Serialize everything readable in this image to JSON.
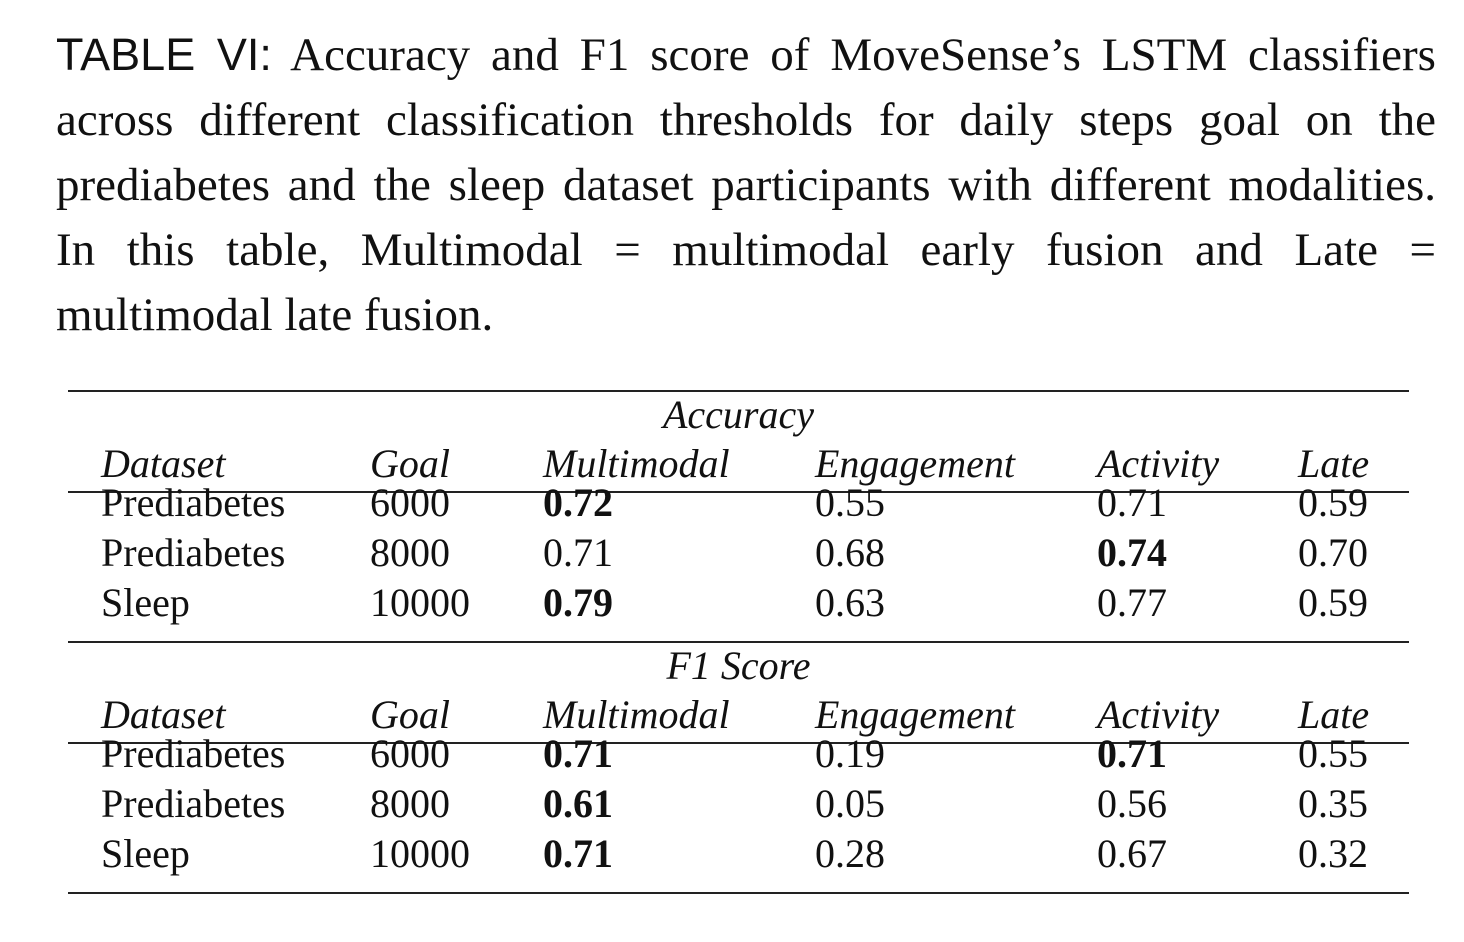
{
  "caption": {
    "label": "TABLE VI:",
    "text": "Accuracy and F1 score of MoveSense’s LSTM classifiers across different classification thresholds for daily steps goal on the prediabetes and the sleep dataset participants with different modalities. In this table, Multimodal = multimodal early fusion and Late = multimodal late fusion."
  },
  "table": {
    "columns": [
      "Dataset",
      "Goal",
      "Multimodal",
      "Engagement",
      "Activity",
      "Late"
    ],
    "sections": [
      {
        "title": "Accuracy",
        "rows": [
          {
            "cells": [
              "Prediabetes",
              "6000",
              "0.72",
              "0.55",
              "0.71",
              "0.59"
            ],
            "bold": [
              false,
              false,
              true,
              false,
              false,
              false
            ]
          },
          {
            "cells": [
              "Prediabetes",
              "8000",
              "0.71",
              "0.68",
              "0.74",
              "0.70"
            ],
            "bold": [
              false,
              false,
              false,
              false,
              true,
              false
            ]
          },
          {
            "cells": [
              "Sleep",
              "10000",
              "0.79",
              "0.63",
              "0.77",
              "0.59"
            ],
            "bold": [
              false,
              false,
              true,
              false,
              false,
              false
            ]
          }
        ]
      },
      {
        "title": "F1 Score",
        "rows": [
          {
            "cells": [
              "Prediabetes",
              "6000",
              "0.71",
              "0.19",
              "0.71",
              "0.55"
            ],
            "bold": [
              false,
              false,
              true,
              false,
              true,
              false
            ]
          },
          {
            "cells": [
              "Prediabetes",
              "8000",
              "0.61",
              "0.05",
              "0.56",
              "0.35"
            ],
            "bold": [
              false,
              false,
              true,
              false,
              false,
              false
            ]
          },
          {
            "cells": [
              "Sleep",
              "10000",
              "0.71",
              "0.28",
              "0.67",
              "0.32"
            ],
            "bold": [
              false,
              false,
              true,
              false,
              false,
              false
            ]
          }
        ]
      }
    ]
  }
}
